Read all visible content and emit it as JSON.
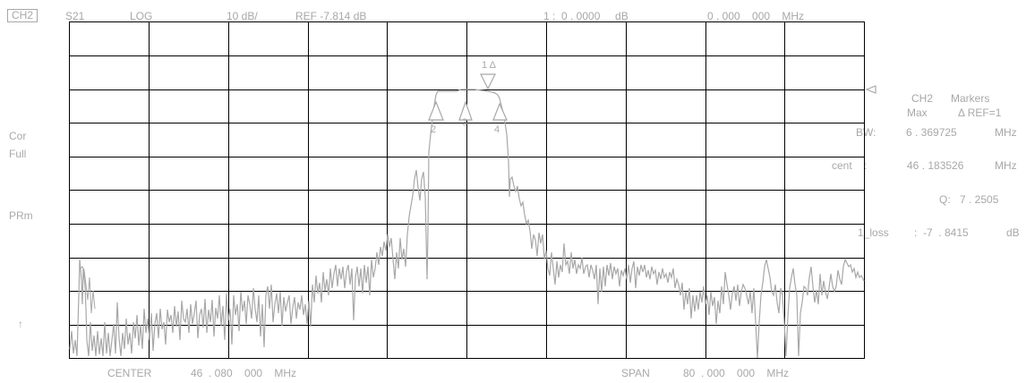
{
  "header": {
    "channel": "CH2",
    "param": "S21",
    "format": "LOG",
    "scale": "10 dB/",
    "ref": "REF -7.814 dB",
    "marker_readout": "1 :  0 . 0000     dB",
    "marker_freq": "0 . 000    000    MHz"
  },
  "left_labels": {
    "cor": "Cor",
    "full": "Full",
    "prm": "PRm",
    "arrow": "↑"
  },
  "right_panel": {
    "title_ch": "CH2",
    "title_markers": "Markers",
    "mode_max": "Max",
    "mode_ref": "Δ REF=1",
    "bw_label": "BW:",
    "bw_value": "6 . 369725",
    "bw_unit": "MHz",
    "cent_label": "cent    :",
    "cent_value": "46 . 183526",
    "cent_unit": "MHz",
    "q_label": "Q:",
    "q_value": "7 . 2505",
    "loss_label": "1_loss",
    "loss_value": ":  -7  . 8415",
    "loss_unit": "dB"
  },
  "footer": {
    "center_label": "CENTER",
    "center_value": "46  . 080    000    MHz",
    "span_label": "SPAN",
    "span_value": "80  . 000    000    MHz"
  },
  "markers": {
    "m1": "1 Δ",
    "m2": "2",
    "m3": "3",
    "m4": "4"
  },
  "colors": {
    "grid": "#000000",
    "trace": "#a8a8a8",
    "text": "#a8a8a8",
    "background": "#ffffff"
  }
}
